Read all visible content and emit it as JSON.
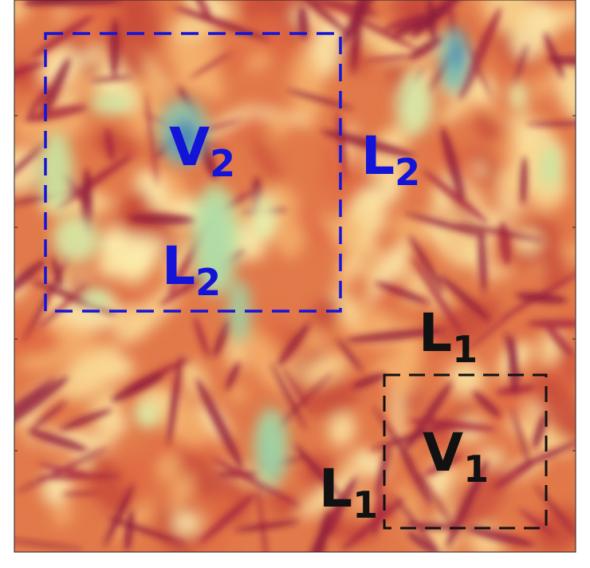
{
  "annotations": [
    {
      "letter": "V",
      "subscript": "2"
    },
    {
      "letter": "L",
      "subscript": "2"
    },
    {
      "letter": "L",
      "subscript": "2"
    },
    {
      "letter": "L",
      "subscript": "1"
    },
    {
      "letter": "V",
      "subscript": "1"
    },
    {
      "letter": "L",
      "subscript": "1"
    }
  ]
}
